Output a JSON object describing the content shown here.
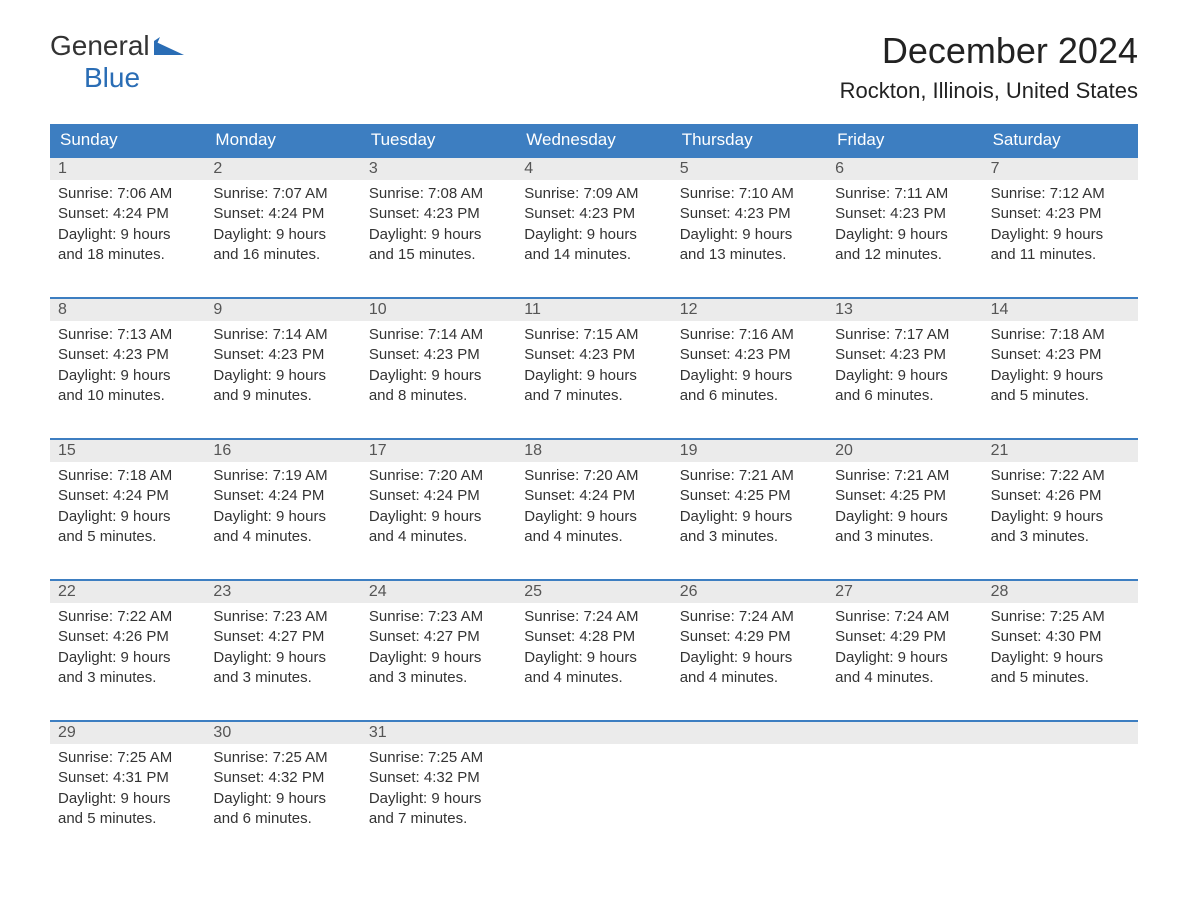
{
  "logo": {
    "word1": "General",
    "word2": "Blue"
  },
  "title": "December 2024",
  "location": "Rockton, Illinois, United States",
  "colors": {
    "header_bg": "#3d7ec1",
    "header_text": "#ffffff",
    "row_border": "#3d7ec1",
    "daynum_bg": "#ebebeb",
    "text": "#333333",
    "logo_blue": "#2a6db5"
  },
  "day_names": [
    "Sunday",
    "Monday",
    "Tuesday",
    "Wednesday",
    "Thursday",
    "Friday",
    "Saturday"
  ],
  "weeks": [
    [
      {
        "n": "1",
        "sr": "Sunrise: 7:06 AM",
        "ss": "Sunset: 4:24 PM",
        "d1": "Daylight: 9 hours",
        "d2": "and 18 minutes."
      },
      {
        "n": "2",
        "sr": "Sunrise: 7:07 AM",
        "ss": "Sunset: 4:24 PM",
        "d1": "Daylight: 9 hours",
        "d2": "and 16 minutes."
      },
      {
        "n": "3",
        "sr": "Sunrise: 7:08 AM",
        "ss": "Sunset: 4:23 PM",
        "d1": "Daylight: 9 hours",
        "d2": "and 15 minutes."
      },
      {
        "n": "4",
        "sr": "Sunrise: 7:09 AM",
        "ss": "Sunset: 4:23 PM",
        "d1": "Daylight: 9 hours",
        "d2": "and 14 minutes."
      },
      {
        "n": "5",
        "sr": "Sunrise: 7:10 AM",
        "ss": "Sunset: 4:23 PM",
        "d1": "Daylight: 9 hours",
        "d2": "and 13 minutes."
      },
      {
        "n": "6",
        "sr": "Sunrise: 7:11 AM",
        "ss": "Sunset: 4:23 PM",
        "d1": "Daylight: 9 hours",
        "d2": "and 12 minutes."
      },
      {
        "n": "7",
        "sr": "Sunrise: 7:12 AM",
        "ss": "Sunset: 4:23 PM",
        "d1": "Daylight: 9 hours",
        "d2": "and 11 minutes."
      }
    ],
    [
      {
        "n": "8",
        "sr": "Sunrise: 7:13 AM",
        "ss": "Sunset: 4:23 PM",
        "d1": "Daylight: 9 hours",
        "d2": "and 10 minutes."
      },
      {
        "n": "9",
        "sr": "Sunrise: 7:14 AM",
        "ss": "Sunset: 4:23 PM",
        "d1": "Daylight: 9 hours",
        "d2": "and 9 minutes."
      },
      {
        "n": "10",
        "sr": "Sunrise: 7:14 AM",
        "ss": "Sunset: 4:23 PM",
        "d1": "Daylight: 9 hours",
        "d2": "and 8 minutes."
      },
      {
        "n": "11",
        "sr": "Sunrise: 7:15 AM",
        "ss": "Sunset: 4:23 PM",
        "d1": "Daylight: 9 hours",
        "d2": "and 7 minutes."
      },
      {
        "n": "12",
        "sr": "Sunrise: 7:16 AM",
        "ss": "Sunset: 4:23 PM",
        "d1": "Daylight: 9 hours",
        "d2": "and 6 minutes."
      },
      {
        "n": "13",
        "sr": "Sunrise: 7:17 AM",
        "ss": "Sunset: 4:23 PM",
        "d1": "Daylight: 9 hours",
        "d2": "and 6 minutes."
      },
      {
        "n": "14",
        "sr": "Sunrise: 7:18 AM",
        "ss": "Sunset: 4:23 PM",
        "d1": "Daylight: 9 hours",
        "d2": "and 5 minutes."
      }
    ],
    [
      {
        "n": "15",
        "sr": "Sunrise: 7:18 AM",
        "ss": "Sunset: 4:24 PM",
        "d1": "Daylight: 9 hours",
        "d2": "and 5 minutes."
      },
      {
        "n": "16",
        "sr": "Sunrise: 7:19 AM",
        "ss": "Sunset: 4:24 PM",
        "d1": "Daylight: 9 hours",
        "d2": "and 4 minutes."
      },
      {
        "n": "17",
        "sr": "Sunrise: 7:20 AM",
        "ss": "Sunset: 4:24 PM",
        "d1": "Daylight: 9 hours",
        "d2": "and 4 minutes."
      },
      {
        "n": "18",
        "sr": "Sunrise: 7:20 AM",
        "ss": "Sunset: 4:24 PM",
        "d1": "Daylight: 9 hours",
        "d2": "and 4 minutes."
      },
      {
        "n": "19",
        "sr": "Sunrise: 7:21 AM",
        "ss": "Sunset: 4:25 PM",
        "d1": "Daylight: 9 hours",
        "d2": "and 3 minutes."
      },
      {
        "n": "20",
        "sr": "Sunrise: 7:21 AM",
        "ss": "Sunset: 4:25 PM",
        "d1": "Daylight: 9 hours",
        "d2": "and 3 minutes."
      },
      {
        "n": "21",
        "sr": "Sunrise: 7:22 AM",
        "ss": "Sunset: 4:26 PM",
        "d1": "Daylight: 9 hours",
        "d2": "and 3 minutes."
      }
    ],
    [
      {
        "n": "22",
        "sr": "Sunrise: 7:22 AM",
        "ss": "Sunset: 4:26 PM",
        "d1": "Daylight: 9 hours",
        "d2": "and 3 minutes."
      },
      {
        "n": "23",
        "sr": "Sunrise: 7:23 AM",
        "ss": "Sunset: 4:27 PM",
        "d1": "Daylight: 9 hours",
        "d2": "and 3 minutes."
      },
      {
        "n": "24",
        "sr": "Sunrise: 7:23 AM",
        "ss": "Sunset: 4:27 PM",
        "d1": "Daylight: 9 hours",
        "d2": "and 3 minutes."
      },
      {
        "n": "25",
        "sr": "Sunrise: 7:24 AM",
        "ss": "Sunset: 4:28 PM",
        "d1": "Daylight: 9 hours",
        "d2": "and 4 minutes."
      },
      {
        "n": "26",
        "sr": "Sunrise: 7:24 AM",
        "ss": "Sunset: 4:29 PM",
        "d1": "Daylight: 9 hours",
        "d2": "and 4 minutes."
      },
      {
        "n": "27",
        "sr": "Sunrise: 7:24 AM",
        "ss": "Sunset: 4:29 PM",
        "d1": "Daylight: 9 hours",
        "d2": "and 4 minutes."
      },
      {
        "n": "28",
        "sr": "Sunrise: 7:25 AM",
        "ss": "Sunset: 4:30 PM",
        "d1": "Daylight: 9 hours",
        "d2": "and 5 minutes."
      }
    ],
    [
      {
        "n": "29",
        "sr": "Sunrise: 7:25 AM",
        "ss": "Sunset: 4:31 PM",
        "d1": "Daylight: 9 hours",
        "d2": "and 5 minutes."
      },
      {
        "n": "30",
        "sr": "Sunrise: 7:25 AM",
        "ss": "Sunset: 4:32 PM",
        "d1": "Daylight: 9 hours",
        "d2": "and 6 minutes."
      },
      {
        "n": "31",
        "sr": "Sunrise: 7:25 AM",
        "ss": "Sunset: 4:32 PM",
        "d1": "Daylight: 9 hours",
        "d2": "and 7 minutes."
      },
      null,
      null,
      null,
      null
    ]
  ]
}
